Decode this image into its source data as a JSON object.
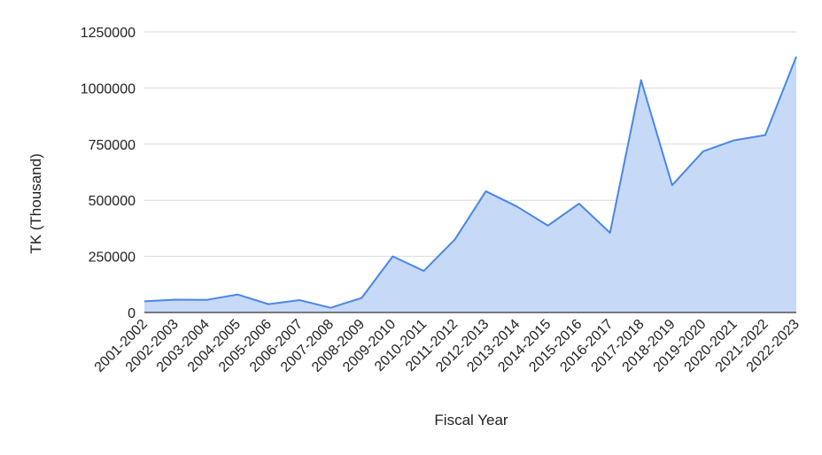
{
  "chart_data": {
    "type": "area",
    "title": "",
    "xlabel": "Fiscal Year",
    "ylabel": "TK (Thousand)",
    "ylim": [
      0,
      1250000
    ],
    "yticks": [
      0,
      250000,
      500000,
      750000,
      1000000,
      1250000
    ],
    "ytick_labels": [
      "0",
      "250000",
      "500000",
      "750000",
      "1000000",
      "1250000"
    ],
    "grid": true,
    "legend": "none",
    "categories": [
      "2001-2002",
      "2002-2003",
      "2003-2004",
      "2004-2005",
      "2005-2006",
      "2006-2007",
      "2007-2008",
      "2008-2009",
      "2009-2010",
      "2010-2011",
      "2011-2012",
      "2012-2013",
      "2013-2014",
      "2014-2015",
      "2015-2016",
      "2016-2017",
      "2017-2018",
      "2018-2019",
      "2019-2020",
      "2020-2021",
      "2021-2022",
      "2022-2023"
    ],
    "series": [
      {
        "values": [
          50000,
          57000,
          56000,
          80000,
          37000,
          55000,
          21000,
          65000,
          250000,
          185000,
          325000,
          540000,
          472000,
          387000,
          485000,
          355000,
          1035000,
          567000,
          718000,
          767000,
          790000,
          1140000
        ]
      }
    ],
    "colors": {
      "line": "#4a86e8",
      "fill": "#c6daf8",
      "grid": "#d9d9d9",
      "axis": "#333333"
    }
  }
}
